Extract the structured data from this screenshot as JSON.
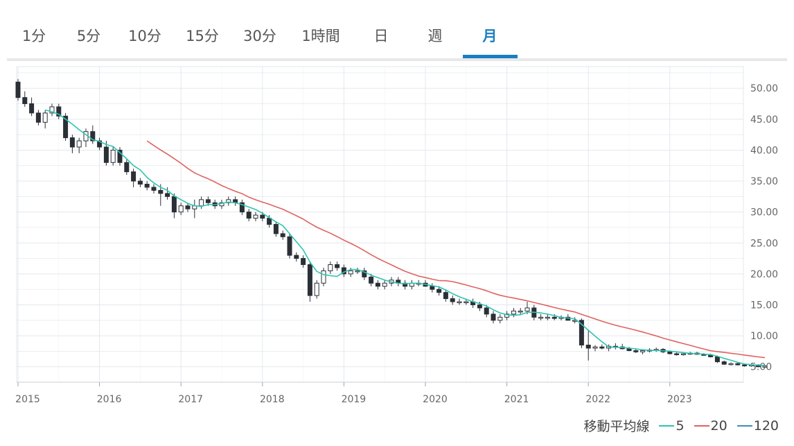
{
  "tabs": [
    {
      "label": "1分",
      "active": false
    },
    {
      "label": "5分",
      "active": false
    },
    {
      "label": "10分",
      "active": false
    },
    {
      "label": "15分",
      "active": false
    },
    {
      "label": "30分",
      "active": false
    },
    {
      "label": "1時間",
      "active": false
    },
    {
      "label": "日",
      "active": false
    },
    {
      "label": "週",
      "active": false
    },
    {
      "label": "月",
      "active": true
    }
  ],
  "colors": {
    "accent": "#1a7fc1",
    "candle": "#2b2f36",
    "ma5": "#2ec4b0",
    "ma20": "#e0625f",
    "ma120": "#3b8fb8",
    "grid": "#e3e7ec"
  },
  "legend": {
    "title": "移動平均線",
    "items": [
      {
        "label": "5",
        "color": "#2ec4b0"
      },
      {
        "label": "20",
        "color": "#e0625f"
      },
      {
        "label": "120",
        "color": "#3b8fb8"
      }
    ]
  },
  "chart_data": {
    "type": "candlestick",
    "x_ticks": [
      "2015",
      "2016",
      "2017",
      "2018",
      "2019",
      "2020",
      "2021",
      "2022",
      "2023"
    ],
    "y_ticks": [
      "50.00",
      "45.00",
      "40.00",
      "35.00",
      "30.00",
      "25.00",
      "20.00",
      "15.00",
      "10.00",
      "5.00"
    ],
    "ylim": [
      2.5,
      53.5
    ],
    "start": "2015-01",
    "ohlc": [
      [
        51.0,
        51.5,
        48.0,
        48.5
      ],
      [
        48.5,
        49.5,
        47.0,
        47.5
      ],
      [
        47.5,
        48.5,
        45.5,
        46.0
      ],
      [
        46.0,
        46.5,
        44.0,
        44.5
      ],
      [
        44.5,
        46.5,
        43.5,
        46.0
      ],
      [
        46.0,
        47.5,
        45.5,
        47.0
      ],
      [
        47.0,
        47.5,
        45.0,
        45.5
      ],
      [
        45.5,
        46.0,
        41.5,
        42.0
      ],
      [
        42.0,
        42.5,
        39.5,
        40.5
      ],
      [
        40.5,
        42.0,
        39.5,
        41.5
      ],
      [
        41.5,
        43.5,
        40.5,
        43.0
      ],
      [
        43.0,
        44.0,
        41.0,
        41.5
      ],
      [
        41.5,
        42.0,
        40.0,
        40.5
      ],
      [
        40.5,
        41.5,
        37.5,
        38.0
      ],
      [
        38.0,
        40.5,
        37.5,
        40.0
      ],
      [
        40.0,
        40.5,
        37.5,
        38.0
      ],
      [
        38.0,
        38.5,
        36.0,
        36.5
      ],
      [
        36.5,
        37.0,
        34.0,
        35.0
      ],
      [
        35.0,
        35.5,
        34.0,
        34.5
      ],
      [
        34.5,
        35.0,
        33.5,
        34.0
      ],
      [
        34.0,
        34.5,
        33.0,
        33.5
      ],
      [
        33.5,
        34.5,
        31.0,
        33.0
      ],
      [
        33.0,
        34.0,
        32.0,
        32.5
      ],
      [
        32.5,
        33.0,
        29.0,
        30.0
      ],
      [
        30.0,
        31.5,
        29.5,
        31.0
      ],
      [
        31.0,
        31.5,
        30.0,
        30.5
      ],
      [
        30.5,
        32.0,
        29.0,
        31.0
      ],
      [
        31.0,
        32.5,
        30.5,
        32.0
      ],
      [
        32.0,
        32.5,
        31.0,
        31.5
      ],
      [
        31.5,
        32.0,
        30.5,
        31.0
      ],
      [
        31.0,
        32.0,
        30.5,
        31.5
      ],
      [
        31.5,
        32.5,
        31.0,
        32.0
      ],
      [
        32.0,
        32.5,
        31.0,
        31.5
      ],
      [
        31.5,
        32.0,
        29.5,
        30.0
      ],
      [
        30.0,
        30.5,
        28.5,
        29.0
      ],
      [
        29.0,
        30.0,
        28.5,
        29.5
      ],
      [
        29.5,
        30.0,
        28.5,
        29.0
      ],
      [
        29.0,
        29.5,
        27.5,
        28.0
      ],
      [
        28.0,
        28.5,
        26.0,
        26.5
      ],
      [
        26.5,
        27.0,
        25.5,
        26.0
      ],
      [
        26.0,
        26.5,
        22.5,
        23.0
      ],
      [
        23.0,
        23.5,
        22.0,
        22.5
      ],
      [
        22.5,
        23.0,
        21.0,
        21.5
      ],
      [
        21.5,
        22.0,
        15.5,
        16.5
      ],
      [
        16.5,
        19.0,
        16.0,
        18.5
      ],
      [
        18.5,
        21.0,
        18.0,
        20.5
      ],
      [
        20.5,
        22.0,
        20.0,
        21.5
      ],
      [
        21.5,
        22.0,
        20.5,
        21.0
      ],
      [
        21.0,
        21.5,
        19.5,
        20.0
      ],
      [
        20.0,
        21.0,
        19.5,
        20.5
      ],
      [
        20.5,
        21.0,
        20.0,
        20.5
      ],
      [
        20.5,
        21.0,
        19.0,
        19.5
      ],
      [
        19.5,
        20.0,
        18.0,
        18.5
      ],
      [
        18.5,
        19.0,
        17.5,
        18.0
      ],
      [
        18.0,
        19.0,
        17.5,
        18.5
      ],
      [
        18.5,
        19.5,
        18.0,
        19.0
      ],
      [
        19.0,
        19.5,
        18.0,
        18.5
      ],
      [
        18.5,
        19.0,
        17.5,
        18.0
      ],
      [
        18.0,
        19.0,
        17.5,
        18.5
      ],
      [
        18.5,
        19.0,
        18.0,
        18.5
      ],
      [
        18.5,
        19.0,
        18.0,
        18.0
      ],
      [
        18.0,
        18.5,
        17.0,
        17.5
      ],
      [
        17.5,
        18.0,
        16.5,
        17.0
      ],
      [
        17.0,
        17.5,
        15.5,
        16.0
      ],
      [
        16.0,
        16.5,
        15.0,
        15.5
      ],
      [
        15.5,
        16.0,
        15.0,
        15.5
      ],
      [
        15.5,
        16.0,
        15.0,
        15.5
      ],
      [
        15.5,
        16.0,
        14.5,
        15.0
      ],
      [
        15.0,
        15.5,
        14.0,
        14.5
      ],
      [
        14.5,
        15.0,
        13.0,
        13.5
      ],
      [
        13.5,
        14.0,
        12.0,
        12.5
      ],
      [
        12.5,
        13.5,
        12.0,
        13.0
      ],
      [
        13.0,
        14.0,
        12.5,
        13.5
      ],
      [
        13.5,
        14.5,
        13.0,
        14.0
      ],
      [
        14.0,
        14.5,
        13.5,
        14.0
      ],
      [
        14.0,
        15.5,
        13.5,
        14.5
      ],
      [
        14.5,
        15.0,
        12.5,
        13.0
      ],
      [
        13.0,
        13.5,
        12.5,
        13.0
      ],
      [
        13.0,
        13.5,
        12.5,
        13.0
      ],
      [
        13.0,
        13.5,
        12.5,
        12.8
      ],
      [
        12.8,
        13.3,
        12.5,
        13.0
      ],
      [
        13.0,
        13.5,
        12.5,
        12.5
      ],
      [
        12.5,
        13.0,
        12.0,
        12.5
      ],
      [
        12.5,
        12.8,
        8.0,
        8.5
      ],
      [
        8.5,
        11.0,
        6.0,
        8.0
      ],
      [
        8.0,
        8.5,
        7.5,
        8.2
      ],
      [
        8.2,
        8.6,
        7.8,
        8.0
      ],
      [
        8.0,
        8.6,
        7.5,
        8.3
      ],
      [
        8.3,
        8.8,
        7.8,
        8.2
      ],
      [
        8.2,
        8.7,
        7.8,
        7.9
      ],
      [
        7.9,
        8.2,
        7.5,
        7.6
      ],
      [
        7.6,
        8.0,
        7.2,
        7.4
      ],
      [
        7.4,
        7.8,
        7.0,
        7.6
      ],
      [
        7.6,
        8.0,
        7.3,
        7.7
      ],
      [
        7.7,
        8.1,
        7.4,
        7.8
      ],
      [
        7.8,
        8.0,
        7.2,
        7.4
      ],
      [
        7.4,
        7.6,
        7.0,
        7.1
      ],
      [
        7.1,
        7.3,
        6.8,
        7.0
      ],
      [
        7.0,
        7.3,
        6.8,
        7.1
      ],
      [
        7.1,
        7.4,
        6.9,
        7.2
      ],
      [
        7.2,
        7.4,
        6.9,
        7.0
      ],
      [
        7.0,
        7.2,
        6.8,
        6.9
      ],
      [
        6.9,
        7.1,
        6.5,
        6.6
      ],
      [
        6.6,
        6.8,
        5.6,
        5.8
      ],
      [
        5.8,
        6.0,
        5.3,
        5.4
      ],
      [
        5.4,
        5.7,
        5.2,
        5.5
      ],
      [
        5.5,
        5.7,
        5.2,
        5.3
      ],
      [
        5.3,
        5.5,
        5.0,
        5.2
      ],
      [
        5.2,
        5.5,
        5.0,
        5.3
      ],
      [
        5.3,
        5.4,
        4.9,
        5.0
      ],
      [
        5.0,
        5.3,
        4.9,
        5.1
      ]
    ]
  }
}
